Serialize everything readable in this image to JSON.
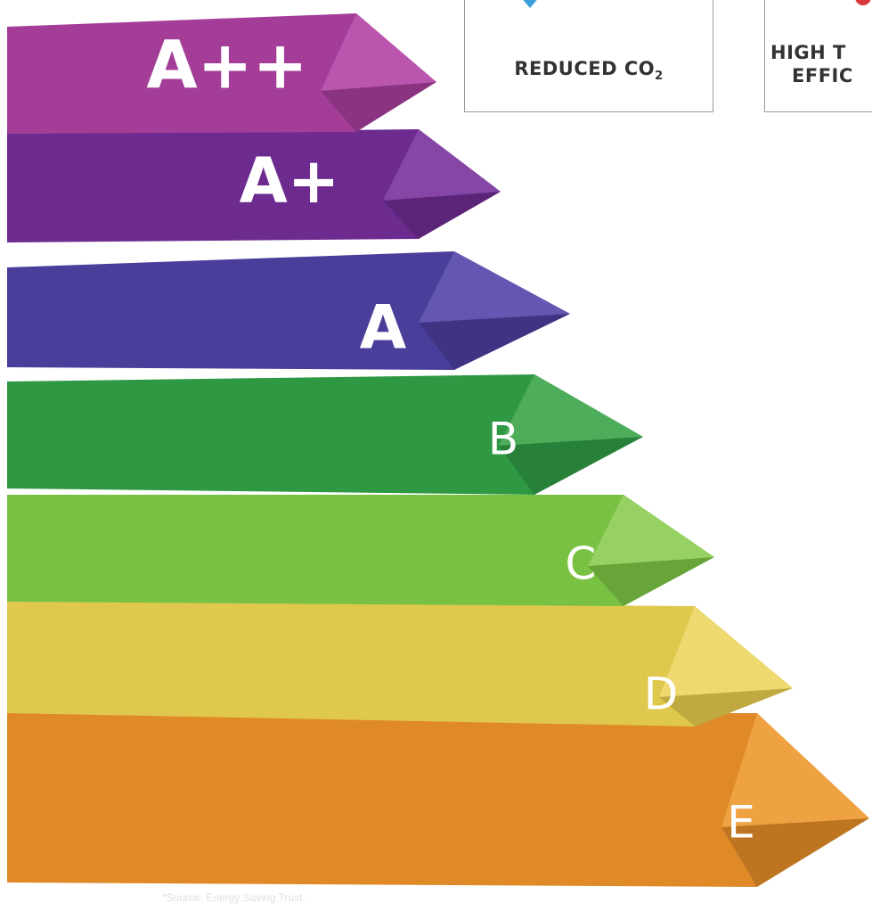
{
  "ratings": [
    "A++",
    "A+",
    "A",
    "B",
    "C",
    "D",
    "E"
  ],
  "cards": [
    {
      "title": "REDUCED CO",
      "subscript": "2"
    },
    {
      "lines": [
        "HIGH T",
        "EFFIC"
      ]
    }
  ],
  "footnote": "*Source: Energy Saving Trust."
}
